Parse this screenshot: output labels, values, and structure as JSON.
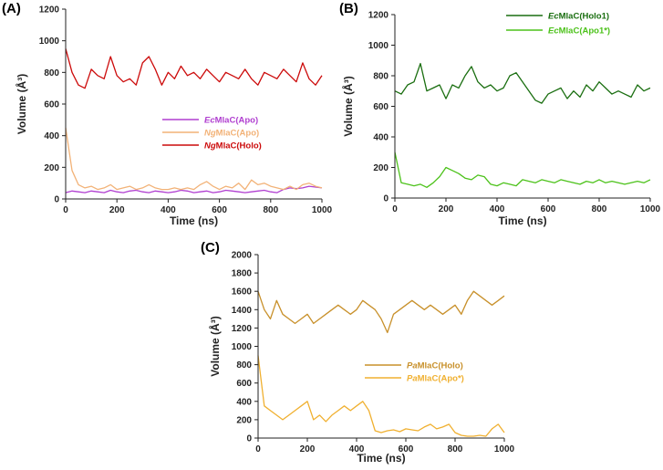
{
  "chart_data": [
    {
      "panel_label": "(A)",
      "type": "line",
      "xlabel": "Time (ns)",
      "ylabel": "Volume (Å³)",
      "xlim": [
        0,
        1000
      ],
      "ylim": [
        0,
        1200
      ],
      "xticks": [
        0,
        200,
        400,
        600,
        800,
        1000
      ],
      "yticks": [
        0,
        200,
        400,
        600,
        800,
        1000,
        1200
      ],
      "legend_position": "center",
      "x": [
        0,
        25,
        50,
        75,
        100,
        125,
        150,
        175,
        200,
        225,
        250,
        275,
        300,
        325,
        350,
        375,
        400,
        425,
        450,
        475,
        500,
        525,
        550,
        575,
        600,
        625,
        650,
        675,
        700,
        725,
        750,
        775,
        800,
        825,
        850,
        875,
        900,
        925,
        950,
        975,
        1000
      ],
      "series": [
        {
          "name_italic": "Ec",
          "name_rest": "MlaC(Apo)",
          "color": "#b03fd0",
          "values": [
            40,
            50,
            45,
            40,
            50,
            45,
            40,
            55,
            45,
            40,
            50,
            55,
            45,
            40,
            50,
            45,
            40,
            45,
            55,
            50,
            40,
            45,
            50,
            40,
            45,
            55,
            50,
            45,
            40,
            45,
            50,
            55,
            45,
            40,
            60,
            70,
            65,
            70,
            80,
            75,
            70
          ]
        },
        {
          "name_italic": "Ng",
          "name_rest": "MlaC(Apo)",
          "color": "#f2b277",
          "values": [
            450,
            180,
            90,
            70,
            80,
            60,
            70,
            90,
            60,
            70,
            80,
            60,
            70,
            90,
            70,
            60,
            60,
            70,
            60,
            70,
            60,
            90,
            110,
            80,
            60,
            80,
            70,
            100,
            60,
            120,
            90,
            100,
            80,
            70,
            60,
            80,
            60,
            90,
            100,
            80,
            70
          ]
        },
        {
          "name_italic": "Ng",
          "name_rest": "MlaC(Holo)",
          "color": "#cc0a0a",
          "values": [
            950,
            800,
            720,
            700,
            820,
            780,
            760,
            900,
            780,
            740,
            760,
            720,
            860,
            900,
            820,
            720,
            800,
            760,
            840,
            780,
            800,
            760,
            820,
            780,
            740,
            800,
            780,
            760,
            820,
            760,
            720,
            800,
            780,
            760,
            820,
            780,
            740,
            860,
            760,
            720,
            780
          ]
        }
      ]
    },
    {
      "panel_label": "(B)",
      "type": "line",
      "xlabel": "Time (ns)",
      "ylabel": "Volume (Å³)",
      "xlim": [
        0,
        1000
      ],
      "ylim": [
        0,
        1200
      ],
      "xticks": [
        0,
        200,
        400,
        600,
        800,
        1000
      ],
      "yticks": [
        0,
        200,
        400,
        600,
        800,
        1000,
        1200
      ],
      "legend_position": "top-right",
      "x": [
        0,
        25,
        50,
        75,
        100,
        125,
        150,
        175,
        200,
        225,
        250,
        275,
        300,
        325,
        350,
        375,
        400,
        425,
        450,
        475,
        500,
        525,
        550,
        575,
        600,
        625,
        650,
        675,
        700,
        725,
        750,
        775,
        800,
        825,
        850,
        875,
        900,
        925,
        950,
        975,
        1000
      ],
      "series": [
        {
          "name_italic": "Ec",
          "name_rest": "MlaC(Holo1)",
          "color": "#1a6e10",
          "values": [
            700,
            680,
            740,
            760,
            880,
            700,
            720,
            740,
            650,
            740,
            720,
            800,
            860,
            760,
            720,
            740,
            700,
            720,
            800,
            820,
            760,
            700,
            640,
            620,
            680,
            700,
            720,
            650,
            700,
            660,
            740,
            700,
            760,
            720,
            680,
            700,
            680,
            660,
            740,
            700,
            720
          ]
        },
        {
          "name_italic": "Ec",
          "name_rest": "MlaC(Apo1*)",
          "color": "#4cc21a",
          "values": [
            300,
            100,
            90,
            80,
            90,
            70,
            100,
            140,
            200,
            180,
            160,
            130,
            120,
            150,
            140,
            90,
            80,
            100,
            90,
            80,
            120,
            110,
            100,
            120,
            110,
            100,
            120,
            110,
            100,
            90,
            110,
            100,
            120,
            100,
            110,
            100,
            90,
            100,
            110,
            100,
            120
          ]
        }
      ]
    },
    {
      "panel_label": "(C)",
      "type": "line",
      "xlabel": "Time (ns)",
      "ylabel": "Volume (Å³)",
      "xlim": [
        0,
        1000
      ],
      "ylim": [
        0,
        2000
      ],
      "xticks": [
        0,
        200,
        400,
        600,
        800,
        1000
      ],
      "yticks": [
        0,
        200,
        400,
        600,
        800,
        1000,
        1200,
        1400,
        1600,
        1800,
        2000
      ],
      "legend_position": "center-right",
      "x": [
        0,
        25,
        50,
        75,
        100,
        125,
        150,
        175,
        200,
        225,
        250,
        275,
        300,
        325,
        350,
        375,
        400,
        425,
        450,
        475,
        500,
        525,
        550,
        575,
        600,
        625,
        650,
        675,
        700,
        725,
        750,
        775,
        800,
        825,
        850,
        875,
        900,
        925,
        950,
        975,
        1000
      ],
      "series": [
        {
          "name_italic": "Pa",
          "name_rest": "MlaC(Holo)",
          "color": "#c8902a",
          "values": [
            1600,
            1400,
            1300,
            1500,
            1350,
            1300,
            1250,
            1300,
            1350,
            1250,
            1300,
            1350,
            1400,
            1450,
            1400,
            1350,
            1400,
            1500,
            1450,
            1400,
            1300,
            1150,
            1350,
            1400,
            1450,
            1500,
            1450,
            1400,
            1450,
            1400,
            1350,
            1400,
            1450,
            1350,
            1500,
            1600,
            1550,
            1500,
            1450,
            1500,
            1550
          ]
        },
        {
          "name_italic": "Pa",
          "name_rest": "MlaC(Apo*)",
          "color": "#f0b030",
          "values": [
            900,
            350,
            300,
            250,
            200,
            250,
            300,
            350,
            400,
            200,
            250,
            180,
            250,
            300,
            350,
            300,
            350,
            400,
            300,
            80,
            60,
            80,
            90,
            70,
            100,
            90,
            80,
            120,
            150,
            100,
            120,
            150,
            60,
            30,
            20,
            20,
            30,
            20,
            100,
            150,
            60
          ]
        }
      ]
    }
  ]
}
